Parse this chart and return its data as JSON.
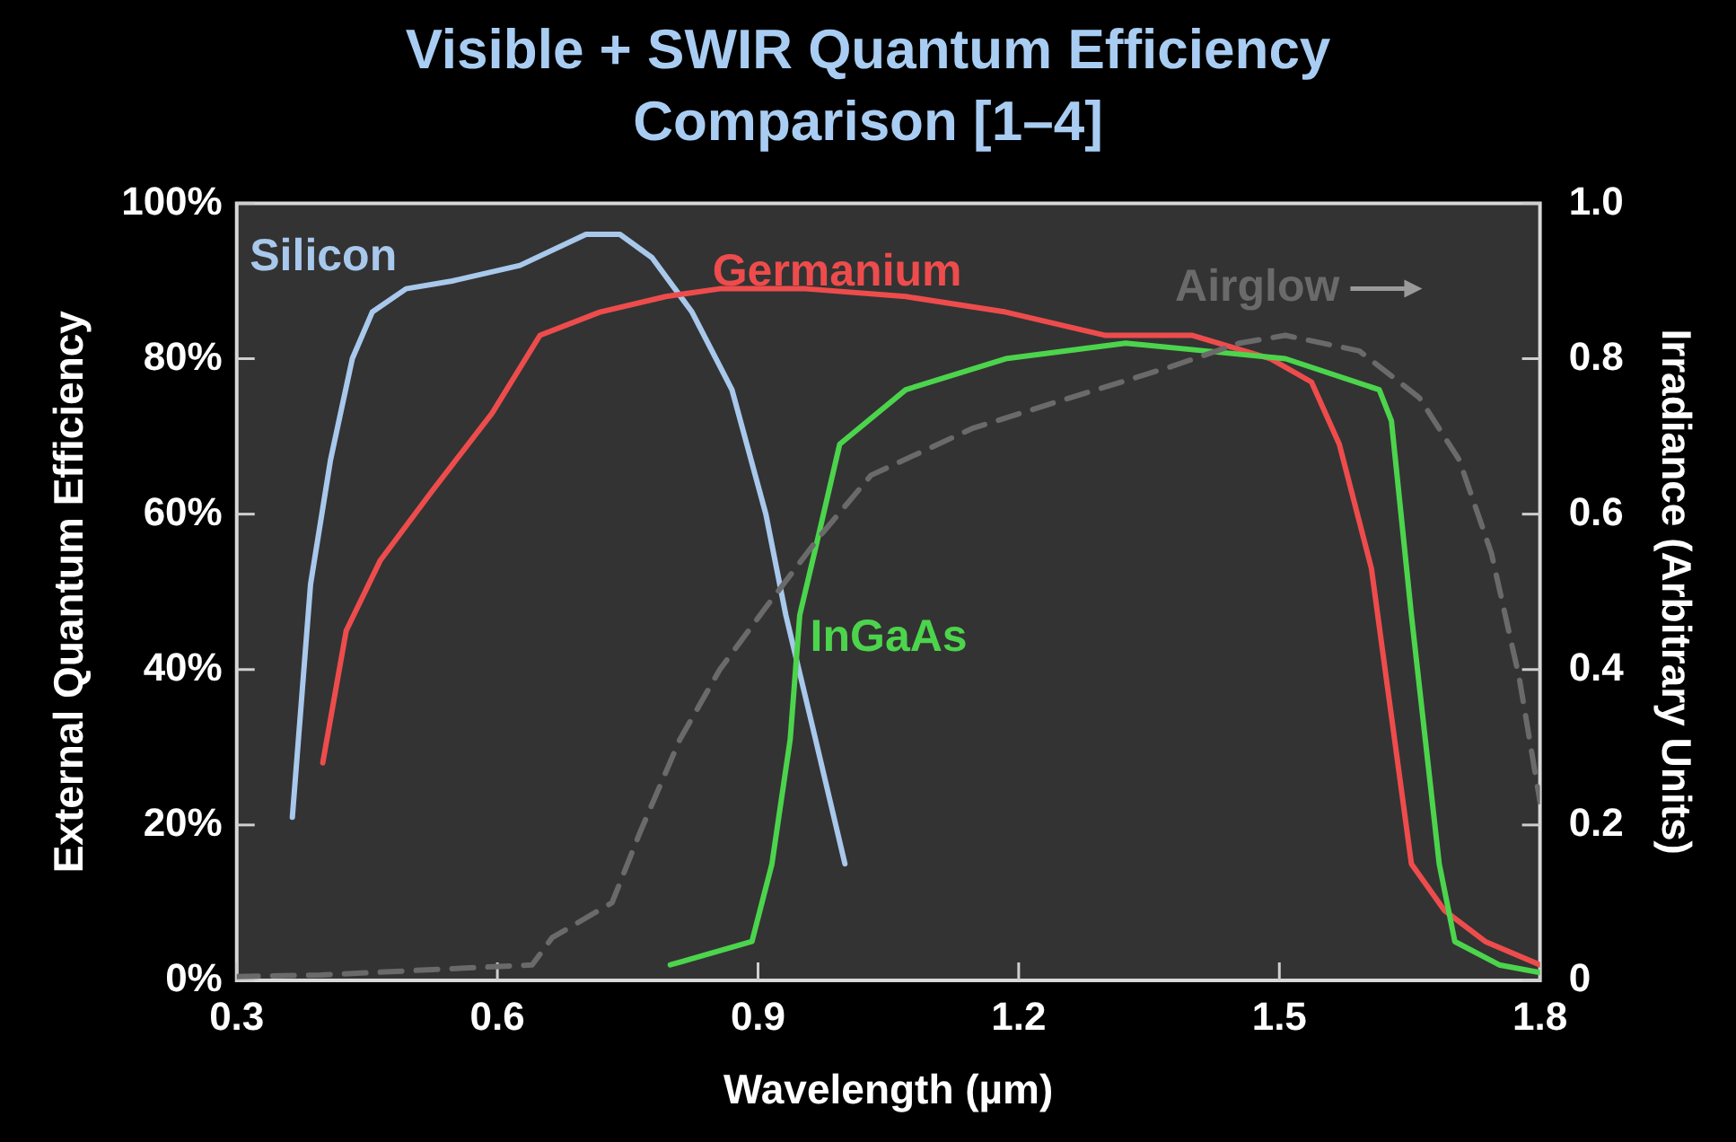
{
  "chart_data": {
    "type": "line",
    "title": "Visible + SWIR Quantum Efficiency Comparison [1–4]",
    "xlabel": "Wavelength (µm)",
    "ylabel": "External Quantum Efficiency",
    "y2label": "Irradiance (Arbitrary Units)",
    "xlim": [
      0.3,
      1.8
    ],
    "xticks": [
      0.3,
      0.6,
      0.9,
      1.2,
      1.5,
      1.8
    ],
    "ylim": [
      0,
      100
    ],
    "yticks": [
      {
        "value": 0,
        "label": "0%"
      },
      {
        "value": 20,
        "label": "20%"
      },
      {
        "value": 40,
        "label": "40%"
      },
      {
        "value": 60,
        "label": "60%"
      },
      {
        "value": 80,
        "label": "80%"
      },
      {
        "value": 100,
        "label": "100%"
      }
    ],
    "y2lim": [
      0,
      1
    ],
    "y2ticks": [
      0,
      0.2,
      0.4,
      0.6,
      0.8,
      {
        "value": 1,
        "label": "1.0"
      }
    ],
    "legend": false,
    "marker": "none",
    "series": [
      {
        "name": "Silicon",
        "color": "#a8c8ec",
        "line_style": "solid",
        "x": [
          0.364,
          0.385,
          0.408,
          0.433,
          0.456,
          0.495,
          0.548,
          0.626,
          0.702,
          0.741,
          0.778,
          0.824,
          0.87,
          0.909,
          0.932,
          0.962,
          1.0
        ],
        "values": [
          21,
          51,
          67,
          80,
          86,
          89,
          90,
          92,
          96,
          96,
          93,
          86,
          76,
          60,
          47,
          33,
          15
        ]
      },
      {
        "name": "Germanium",
        "color": "#ee4c4c",
        "line_style": "solid",
        "x": [
          0.399,
          0.426,
          0.465,
          0.525,
          0.594,
          0.649,
          0.718,
          0.794,
          0.856,
          0.955,
          1.07,
          1.185,
          1.3,
          1.4,
          1.49,
          1.537,
          1.569,
          1.606,
          1.629,
          1.652,
          1.69,
          1.737,
          1.8
        ],
        "values": [
          28,
          45,
          54,
          63,
          73,
          83,
          86,
          88,
          89,
          89,
          88,
          86,
          83,
          83,
          80,
          77,
          69,
          53,
          34,
          15,
          9,
          5,
          2
        ]
      },
      {
        "name": "InGaAs",
        "color": "#4cd44c",
        "line_style": "solid",
        "x": [
          0.799,
          0.893,
          0.916,
          0.937,
          0.948,
          0.967,
          0.994,
          1.07,
          1.185,
          1.323,
          1.415,
          1.507,
          1.615,
          1.629,
          1.652,
          1.684,
          1.702,
          1.753,
          1.8
        ],
        "values": [
          2,
          5,
          15,
          31,
          47,
          56,
          69,
          76,
          80,
          82,
          81,
          80,
          76,
          72,
          47,
          15,
          5,
          2,
          1
        ]
      },
      {
        "name": "Airglow",
        "color": "#6a6a6a",
        "line_style": "dashed",
        "axis": "y2",
        "x": [
          0.3,
          0.397,
          0.64,
          0.663,
          0.732,
          0.764,
          0.81,
          0.856,
          0.909,
          0.97,
          1.03,
          1.146,
          1.26,
          1.376,
          1.454,
          1.507,
          1.592,
          1.661,
          1.707,
          1.744,
          1.776,
          1.8
        ],
        "values": [
          0.005,
          0.007,
          0.02,
          0.055,
          0.1,
          0.19,
          0.31,
          0.4,
          0.48,
          0.57,
          0.65,
          0.71,
          0.75,
          0.79,
          0.82,
          0.83,
          0.81,
          0.75,
          0.67,
          0.55,
          0.39,
          0.23
        ]
      }
    ]
  }
}
